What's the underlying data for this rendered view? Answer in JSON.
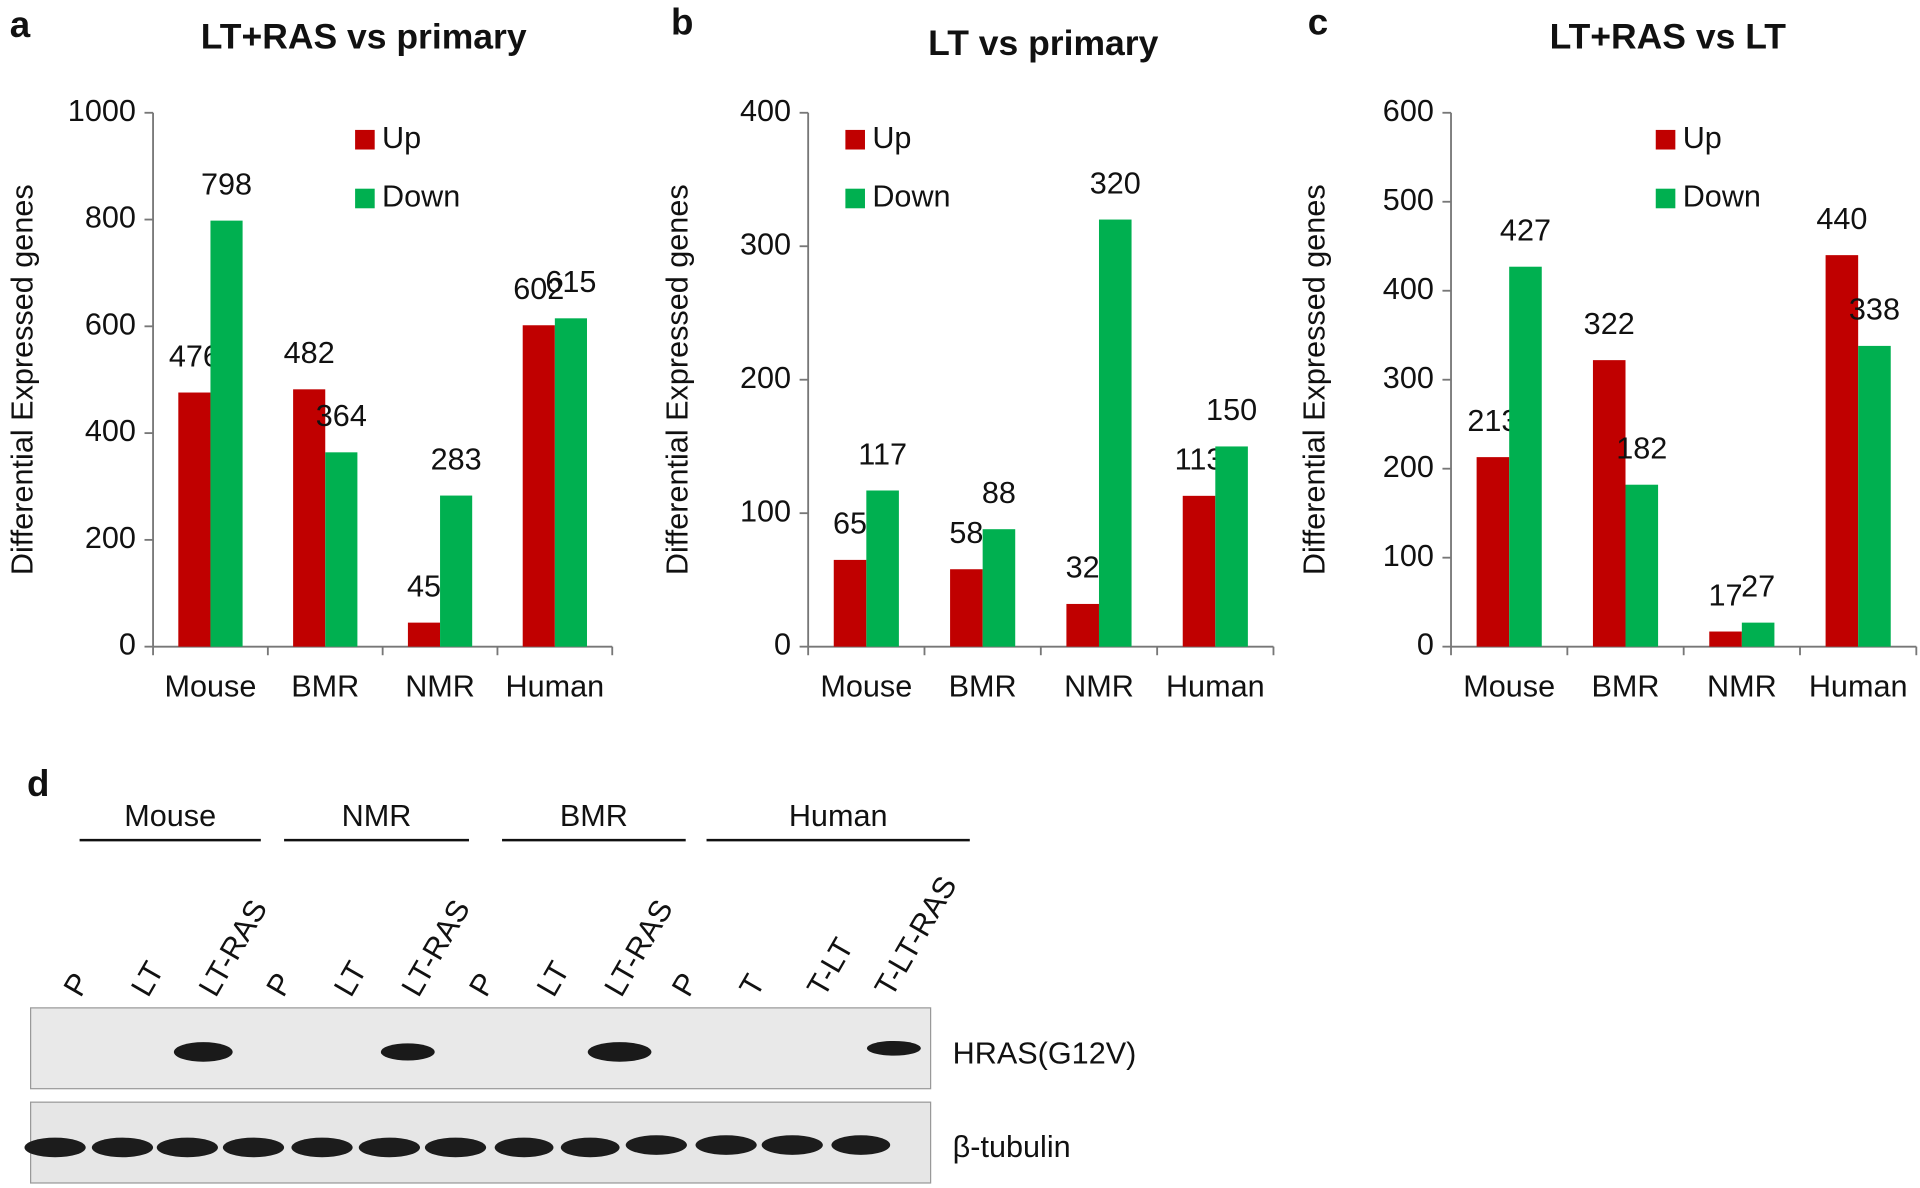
{
  "chart_data": [
    {
      "type": "bar",
      "panel_label": "a",
      "title": "LT+RAS vs primary",
      "ylabel": "Differential Expressed genes",
      "categories": [
        "Mouse",
        "BMR",
        "NMR",
        "Human"
      ],
      "series": [
        {
          "name": "Up",
          "color": "#c00000",
          "values": [
            476,
            482,
            45,
            602
          ]
        },
        {
          "name": "Down",
          "color": "#00b050",
          "values": [
            798,
            364,
            283,
            615
          ]
        }
      ],
      "ylim": [
        0,
        1000
      ],
      "yticks": [
        0,
        200,
        400,
        600,
        800,
        1000
      ],
      "legend": "upper center",
      "grid": false
    },
    {
      "type": "bar",
      "panel_label": "b",
      "title": "LT vs primary",
      "ylabel": "Differential Expressed genes",
      "categories": [
        "Mouse",
        "BMR",
        "NMR",
        "Human"
      ],
      "series": [
        {
          "name": "Up",
          "color": "#c00000",
          "values": [
            65,
            58,
            32,
            113
          ]
        },
        {
          "name": "Down",
          "color": "#00b050",
          "values": [
            117,
            88,
            320,
            150
          ]
        }
      ],
      "ylim": [
        0,
        400
      ],
      "yticks": [
        0,
        100,
        200,
        300,
        400
      ],
      "legend": "upper left",
      "grid": false
    },
    {
      "type": "bar",
      "panel_label": "c",
      "title": "LT+RAS vs LT",
      "ylabel": "Differential Expressed genes",
      "categories": [
        "Mouse",
        "BMR",
        "NMR",
        "Human"
      ],
      "series": [
        {
          "name": "Up",
          "color": "#c00000",
          "values": [
            213,
            322,
            17,
            440
          ]
        },
        {
          "name": "Down",
          "color": "#00b050",
          "values": [
            427,
            182,
            27,
            338
          ]
        }
      ],
      "ylim": [
        0,
        600
      ],
      "yticks": [
        0,
        100,
        200,
        300,
        400,
        500,
        600
      ],
      "legend": "upper center",
      "grid": false
    }
  ],
  "blot": {
    "panel_label": "d",
    "groups": [
      "Mouse",
      "NMR",
      "BMR",
      "Human"
    ],
    "lanes": [
      "P",
      "LT",
      "LT-RAS",
      "P",
      "LT",
      "LT-RAS",
      "P",
      "LT",
      "LT-RAS",
      "P",
      "T",
      "T-LT",
      "T-LT-RAS"
    ],
    "rows": [
      "HRAS(G12V)",
      "β-tubulin"
    ]
  }
}
